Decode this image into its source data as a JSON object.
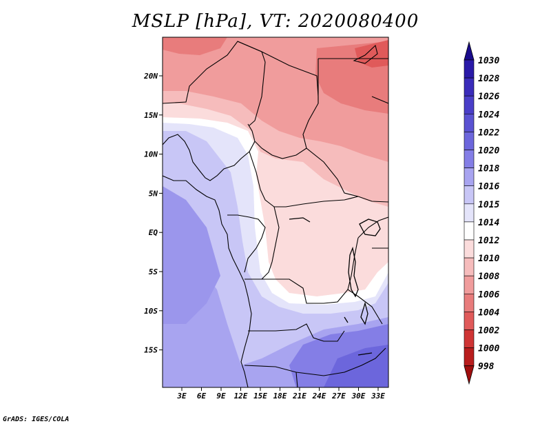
{
  "title": "MSLP [hPa], VT: 2020080400",
  "footer": "GrADS: IGES/COLA",
  "map": {
    "lat_labels": [
      "20N",
      "15N",
      "10N",
      "5N",
      "EQ",
      "5S",
      "10S",
      "15S"
    ],
    "lon_labels": [
      "3E",
      "6E",
      "9E",
      "12E",
      "15E",
      "18E",
      "21E",
      "24E",
      "27E",
      "30E",
      "33E"
    ]
  },
  "colorbar": {
    "levels": [
      "1030",
      "1028",
      "1026",
      "1024",
      "1022",
      "1020",
      "1018",
      "1016",
      "1015",
      "1014",
      "1012",
      "1010",
      "1008",
      "1006",
      "1004",
      "1002",
      "1000",
      "998"
    ],
    "colors": [
      "#1a0b8c",
      "#2a1aa8",
      "#3a2cba",
      "#4a3ec8",
      "#5a52d2",
      "#6c66dc",
      "#847ee6",
      "#a8a4f0",
      "#c8c6f6",
      "#e4e4fa",
      "#ffffff",
      "#fbdcdc",
      "#f6bcbc",
      "#f09c9c",
      "#e87c7c",
      "#e05a5a",
      "#cf3535",
      "#b81d1d",
      "#a00e0e"
    ],
    "cap_top_color": "#1a0b8c",
    "cap_bottom_color": "#a00e0e"
  }
}
